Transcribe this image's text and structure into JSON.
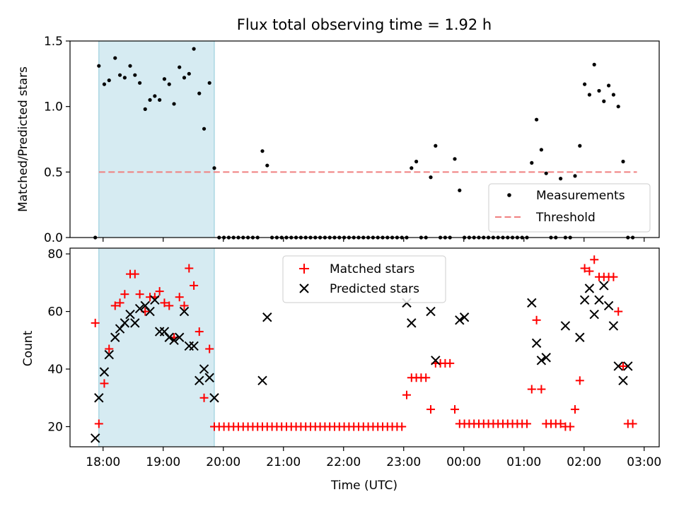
{
  "chart_data": [
    {
      "type": "scatter",
      "title": "Flux total observing time = 1.92 h",
      "ylabel": "Matched/Predicted stars",
      "xlabel": "",
      "ylim": [
        0,
        1.5
      ],
      "yticks": [
        "0.0",
        "0.5",
        "1.0",
        "1.5"
      ],
      "grid": false,
      "legend_position": "lower-right",
      "highlight_span_hours": [
        17.93,
        19.85
      ],
      "threshold": {
        "name": "Threshold",
        "value": 0.5,
        "x_range_hours": [
          17.93,
          26.88
        ]
      },
      "series": [
        {
          "name": "Measurements",
          "x_hours": [
            17.87,
            17.93,
            18.02,
            18.1,
            18.2,
            18.28,
            18.36,
            18.45,
            18.53,
            18.61,
            18.7,
            18.78,
            18.86,
            18.94,
            19.02,
            19.1,
            19.18,
            19.27,
            19.35,
            19.43,
            19.51,
            19.6,
            19.68,
            19.77,
            19.85,
            19.93,
            20.01,
            20.09,
            20.17,
            20.25,
            20.33,
            20.41,
            20.49,
            20.57,
            20.65,
            20.73,
            20.81,
            20.89,
            20.97,
            21.05,
            21.13,
            21.21,
            21.29,
            21.37,
            21.45,
            21.53,
            21.61,
            21.69,
            21.77,
            21.85,
            21.93,
            22.01,
            22.09,
            22.17,
            22.25,
            22.33,
            22.41,
            22.49,
            22.57,
            22.65,
            22.73,
            22.81,
            22.89,
            22.97,
            23.05,
            23.13,
            23.21,
            23.29,
            23.37,
            23.45,
            23.53,
            23.61,
            23.69,
            23.77,
            23.85,
            23.93,
            24.01,
            24.09,
            24.17,
            24.25,
            24.33,
            24.41,
            24.49,
            24.57,
            24.65,
            24.73,
            24.81,
            24.89,
            24.97,
            25.05,
            25.13,
            25.21,
            25.29,
            25.37,
            25.45,
            25.53,
            25.61,
            25.69,
            25.77,
            25.85,
            25.93,
            26.01,
            26.09,
            26.17,
            26.25,
            26.33,
            26.41,
            26.49,
            26.57,
            26.65,
            26.73,
            26.81
          ],
          "y": [
            0.0,
            1.31,
            1.17,
            1.2,
            1.37,
            1.24,
            1.22,
            1.31,
            1.24,
            1.18,
            0.98,
            1.05,
            1.08,
            1.05,
            1.21,
            1.17,
            1.02,
            1.3,
            1.22,
            1.25,
            1.44,
            1.1,
            0.83,
            1.18,
            0.53,
            0.0,
            0.0,
            0.0,
            0.0,
            0.0,
            0.0,
            0.0,
            0.0,
            0.0,
            0.66,
            0.55,
            0.0,
            0.0,
            0.0,
            0.0,
            0.0,
            0.0,
            0.0,
            0.0,
            0.0,
            0.0,
            0.0,
            0.0,
            0.0,
            0.0,
            0.0,
            0.0,
            0.0,
            0.0,
            0.0,
            0.0,
            0.0,
            0.0,
            0.0,
            0.0,
            0.0,
            0.0,
            0.0,
            0.0,
            0.0,
            0.53,
            0.58,
            0.0,
            0.0,
            0.46,
            0.7,
            0.0,
            0.0,
            0.0,
            0.6,
            0.36,
            0.0,
            0.0,
            0.0,
            0.0,
            0.0,
            0.0,
            0.0,
            0.0,
            0.0,
            0.0,
            0.0,
            0.0,
            0.0,
            0.0,
            0.57,
            0.9,
            0.67,
            0.49,
            0.0,
            0.0,
            0.45,
            0.0,
            0.0,
            0.47,
            0.7,
            1.17,
            1.09,
            1.32,
            1.12,
            1.04,
            1.16,
            1.09,
            1.0,
            0.58,
            0.0,
            0.0
          ]
        }
      ]
    },
    {
      "type": "scatter",
      "title": "",
      "ylabel": "Count",
      "xlabel": "Time (UTC)",
      "ylim": [
        13,
        82
      ],
      "yticks": [
        "20",
        "40",
        "60",
        "80"
      ],
      "xlim_hours": [
        17.45,
        27.25
      ],
      "xticks": [
        "18:00",
        "19:00",
        "20:00",
        "21:00",
        "22:00",
        "23:00",
        "00:00",
        "01:00",
        "02:00",
        "03:00"
      ],
      "xtick_hours": [
        18,
        19,
        20,
        21,
        22,
        23,
        24,
        25,
        26,
        27
      ],
      "grid": false,
      "legend_position": "top-center",
      "highlight_span_hours": [
        17.93,
        19.85
      ],
      "series": [
        {
          "name": "Matched stars",
          "x_hours": [
            17.87,
            17.93,
            18.02,
            18.1,
            18.2,
            18.28,
            18.36,
            18.45,
            18.53,
            18.61,
            18.7,
            18.78,
            18.86,
            18.94,
            19.02,
            19.1,
            19.18,
            19.27,
            19.35,
            19.43,
            19.51,
            19.6,
            19.68,
            19.77,
            19.85,
            19.93,
            20.01,
            20.09,
            20.17,
            20.25,
            20.33,
            20.41,
            20.49,
            20.57,
            20.65,
            20.73,
            20.81,
            20.89,
            20.97,
            21.05,
            21.13,
            21.21,
            21.29,
            21.37,
            21.45,
            21.53,
            21.61,
            21.69,
            21.77,
            21.85,
            21.93,
            22.01,
            22.09,
            22.17,
            22.25,
            22.33,
            22.41,
            22.49,
            22.57,
            22.65,
            22.73,
            22.81,
            22.89,
            22.97,
            23.05,
            23.13,
            23.21,
            23.29,
            23.37,
            23.45,
            23.53,
            23.61,
            23.69,
            23.77,
            23.85,
            23.93,
            24.01,
            24.09,
            24.17,
            24.25,
            24.33,
            24.41,
            24.49,
            24.57,
            24.65,
            24.73,
            24.81,
            24.89,
            24.97,
            25.05,
            25.13,
            25.21,
            25.29,
            25.37,
            25.45,
            25.53,
            25.61,
            25.69,
            25.77,
            25.85,
            25.93,
            26.01,
            26.09,
            26.17,
            26.25,
            26.33,
            26.41,
            26.49,
            26.57,
            26.65,
            26.73,
            26.81
          ],
          "y": [
            56,
            21,
            35,
            47,
            62,
            63,
            66,
            73,
            73,
            66,
            60,
            65,
            65,
            67,
            63,
            62,
            51,
            65,
            62,
            75,
            69,
            53,
            30,
            47,
            20,
            20,
            20,
            20,
            20,
            20,
            20,
            20,
            20,
            20,
            20,
            20,
            20,
            20,
            20,
            20,
            20,
            20,
            20,
            20,
            20,
            20,
            20,
            20,
            20,
            20,
            20,
            20,
            20,
            20,
            20,
            20,
            20,
            20,
            20,
            20,
            20,
            20,
            20,
            20,
            31,
            37,
            37,
            37,
            37,
            26,
            42,
            42,
            42,
            42,
            26,
            21,
            21,
            21,
            21,
            21,
            21,
            21,
            21,
            21,
            21,
            21,
            21,
            21,
            21,
            21,
            33,
            57,
            33,
            21,
            21,
            21,
            21,
            20,
            20,
            26,
            36,
            75,
            74,
            78,
            72,
            72,
            72,
            72,
            60,
            41,
            21,
            21
          ]
        },
        {
          "name": "Predicted stars",
          "x_hours": [
            17.87,
            17.93,
            18.02,
            18.1,
            18.2,
            18.28,
            18.36,
            18.45,
            18.53,
            18.61,
            18.7,
            18.78,
            18.86,
            18.94,
            19.02,
            19.1,
            19.18,
            19.27,
            19.35,
            19.43,
            19.51,
            19.6,
            19.68,
            19.77,
            19.85,
            20.65,
            20.73,
            23.05,
            23.13,
            23.45,
            23.53,
            23.93,
            24.01,
            25.13,
            25.21,
            25.29,
            25.37,
            25.69,
            25.93,
            26.01,
            26.09,
            26.17,
            26.25,
            26.33,
            26.41,
            26.49,
            26.57,
            26.65,
            26.73
          ],
          "y": [
            16,
            30,
            39,
            45,
            51,
            54,
            56,
            59,
            56,
            61,
            62,
            60,
            64,
            53,
            53,
            51,
            50,
            51,
            60,
            48,
            48,
            36,
            40,
            37,
            30,
            36,
            58,
            63,
            56,
            60,
            43,
            57,
            58,
            63,
            49,
            43,
            44,
            55,
            51,
            64,
            68,
            59,
            64,
            69,
            62,
            55,
            41,
            36,
            41
          ]
        }
      ]
    }
  ]
}
